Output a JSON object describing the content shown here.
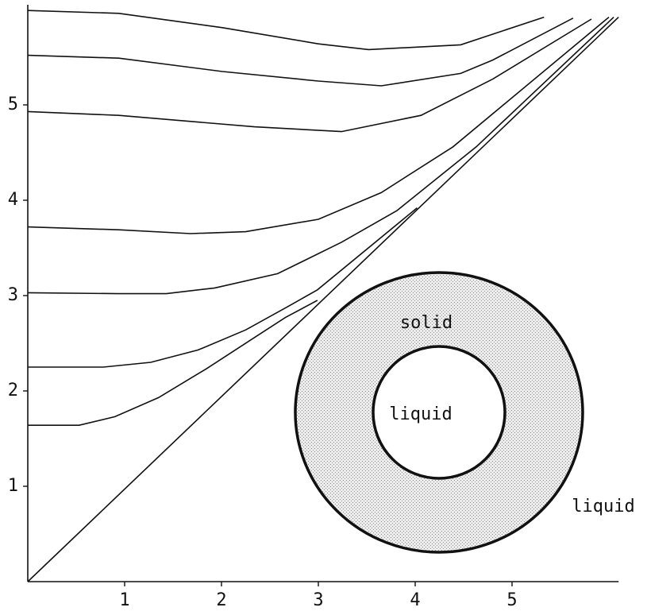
{
  "chart_data": {
    "type": "line",
    "xlim": [
      0,
      6.1
    ],
    "ylim": [
      0,
      6.05
    ],
    "xticks": [
      1,
      2,
      3,
      4,
      5
    ],
    "yticks": [
      1,
      2,
      3,
      4,
      5
    ],
    "color": "#111111",
    "series": [
      {
        "x": [
          0,
          0.94,
          2.01,
          3.0,
          3.52,
          4.47,
          5.33
        ],
        "values": [
          5.99,
          5.96,
          5.81,
          5.64,
          5.58,
          5.63,
          5.92
        ]
      },
      {
        "x": [
          0,
          0.94,
          2.01,
          3.0,
          3.65,
          4.47,
          4.8,
          5.63
        ],
        "values": [
          5.52,
          5.49,
          5.35,
          5.25,
          5.2,
          5.33,
          5.47,
          5.91
        ]
      },
      {
        "x": [
          0,
          0.94,
          2.34,
          3.24,
          4.06,
          4.8,
          5.82
        ],
        "values": [
          4.93,
          4.89,
          4.77,
          4.72,
          4.89,
          5.27,
          5.9
        ]
      },
      {
        "x": [
          0,
          0.94,
          1.68,
          2.25,
          3.0,
          3.65,
          4.39,
          6.0
        ],
        "values": [
          3.72,
          3.69,
          3.65,
          3.67,
          3.8,
          4.08,
          4.56,
          5.92
        ]
      },
      {
        "x": [
          0,
          0.94,
          1.43,
          1.93,
          2.58,
          3.24,
          3.81,
          4.63,
          6.05
        ],
        "values": [
          3.03,
          3.02,
          3.02,
          3.08,
          3.23,
          3.56,
          3.89,
          4.56,
          5.92
        ]
      },
      {
        "x": [
          0,
          0.78,
          1.27,
          1.76,
          2.25,
          2.66,
          2.99,
          4.02
        ],
        "values": [
          2.25,
          2.25,
          2.3,
          2.43,
          2.64,
          2.87,
          3.06,
          3.92
        ]
      },
      {
        "x": [
          0,
          0.53,
          0.9,
          1.35,
          1.84,
          2.34,
          2.66,
          2.99
        ],
        "values": [
          1.64,
          1.64,
          1.73,
          1.93,
          2.23,
          2.56,
          2.77,
          2.95
        ]
      },
      {
        "x": [
          0,
          6.1
        ],
        "values": [
          0,
          5.92
        ]
      }
    ]
  },
  "inset": {
    "outer_label": "solid",
    "inner_label": "liquid",
    "outside_label": "liquid"
  }
}
